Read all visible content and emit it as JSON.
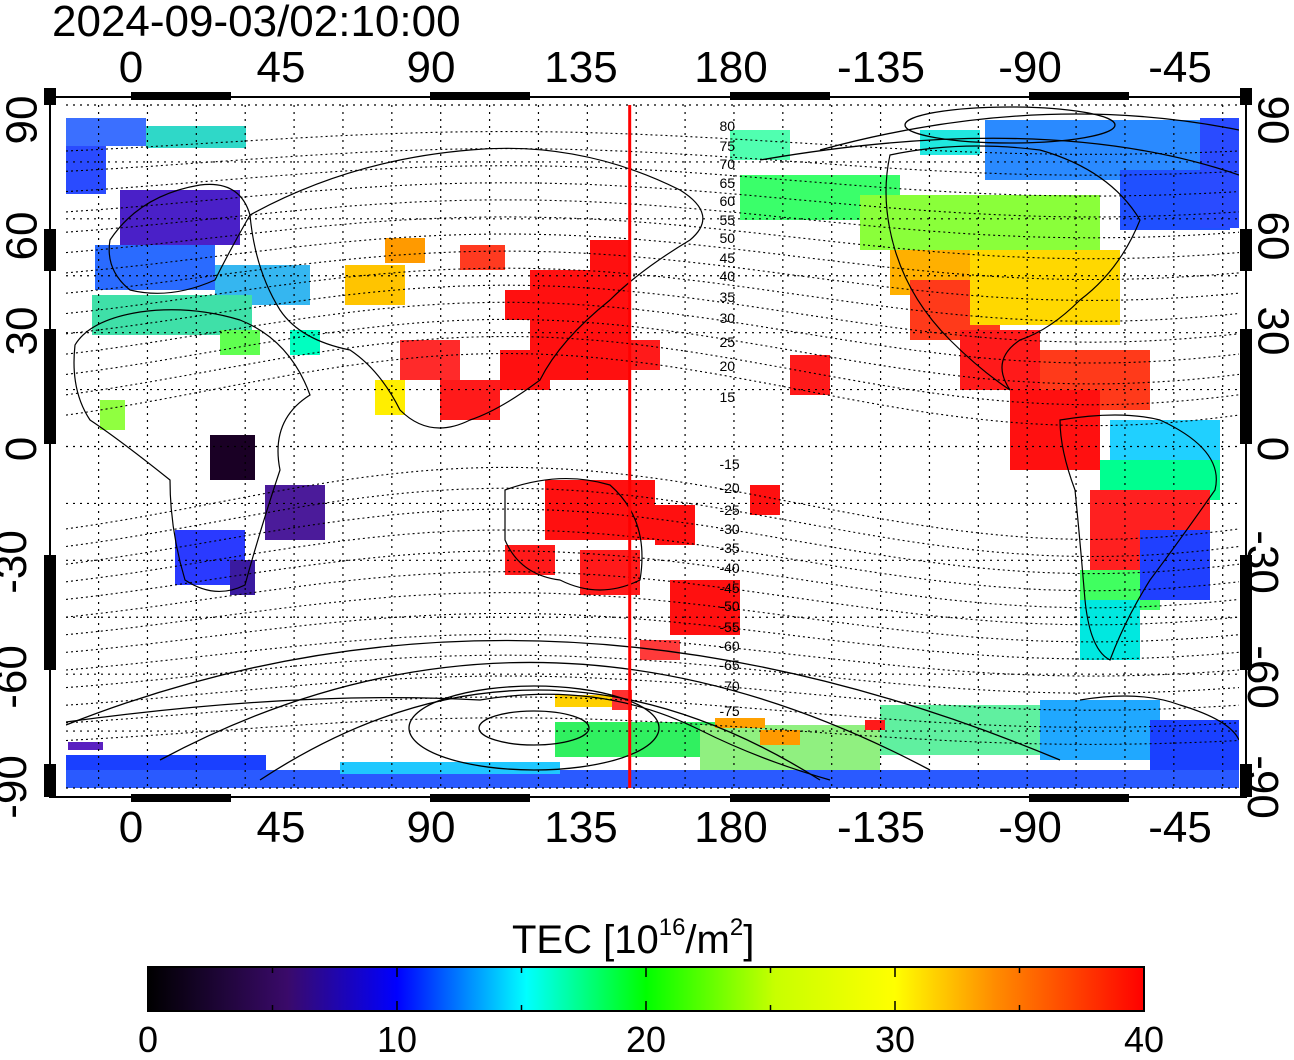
{
  "timestamp": "2024-09-03/02:10:00",
  "map": {
    "lon_ticks_top": [
      "0",
      "45",
      "90",
      "135",
      "180",
      "-135",
      "-90",
      "-45"
    ],
    "lon_ticks_bottom": [
      "0",
      "45",
      "90",
      "135",
      "180",
      "-135",
      "-90",
      "-45"
    ],
    "lat_ticks": [
      "90",
      "60",
      "30",
      "0",
      "-30",
      "-60",
      "-90"
    ],
    "lon_range": [
      -25,
      335
    ],
    "lat_range": [
      -90,
      90
    ],
    "grid": "dotted every 15 degrees",
    "meridian_marker": {
      "lon": 148,
      "color": "#ff0000"
    },
    "contour_labels_north": [
      "80",
      "75",
      "70",
      "65",
      "60",
      "55",
      "50",
      "45",
      "40",
      "35",
      "30",
      "25",
      "20",
      "15"
    ],
    "contour_labels_south": [
      "-15",
      "-20",
      "-25",
      "-30",
      "-35",
      "-40",
      "-45",
      "-50",
      "-55",
      "-60",
      "-65",
      "-70",
      "-75"
    ]
  },
  "colorbar": {
    "title_main": "TEC  [10",
    "title_exp1": "16",
    "title_mid": "/m",
    "title_exp2": "2",
    "title_end": "]",
    "min": 0,
    "max": 40,
    "tick_labels": [
      "0",
      "10",
      "20",
      "30",
      "40"
    ],
    "colormap": [
      "#000000",
      "#4b0082",
      "#0000ff",
      "#00ffff",
      "#00ff00",
      "#ffff00",
      "#ff8c00",
      "#ff0000"
    ]
  }
}
